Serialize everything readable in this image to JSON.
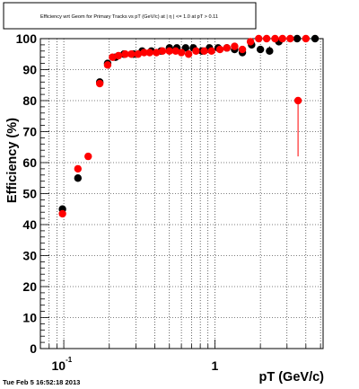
{
  "chart_data": {
    "type": "scatter",
    "title": "Efficiency wrt Geom for Primary Tracks vs pT (GeV/c) at |  η | <= 1.0 at pT > 0.11",
    "xlabel": "pT (GeV/c)",
    "ylabel": "Efficiency (%)",
    "x_scale": "log",
    "xlim": [
      0.07,
      5.2
    ],
    "ylim": [
      0,
      100
    ],
    "grid": true,
    "x_ticks": [
      {
        "value": 0.1,
        "base": "10",
        "exp": "-1"
      },
      {
        "value": 1,
        "base": "1",
        "exp": ""
      }
    ],
    "y_ticks": [
      "0",
      "10",
      "20",
      "30",
      "40",
      "50",
      "60",
      "70",
      "80",
      "90",
      "100"
    ],
    "series": [
      {
        "color": "#000000",
        "points": [
          [
            0.098,
            45.0,
            1.0,
            0.0,
            0.0075
          ],
          [
            0.124,
            55.0,
            1.0,
            0.0,
            0.0075
          ],
          [
            0.173,
            86.0,
            1.0,
            0.0,
            0.0075
          ],
          [
            0.195,
            92.0,
            1.0,
            0.0,
            0.0075
          ],
          [
            0.22,
            94.0,
            0.6,
            0.0,
            0.0075
          ],
          [
            0.25,
            95.0,
            0.6,
            0.0,
            0.0075
          ],
          [
            0.29,
            95.0,
            0.6,
            0.0,
            0.0075
          ],
          [
            0.33,
            96.0,
            0.6,
            0.0,
            0.0075
          ],
          [
            0.38,
            96.0,
            0.6,
            0.0,
            0.0075
          ],
          [
            0.44,
            96.0,
            0.6,
            0.0,
            0.0075
          ],
          [
            0.5,
            97.0,
            0.6,
            0.0,
            0.0075
          ],
          [
            0.56,
            97.0,
            0.6,
            0.0,
            0.0075
          ],
          [
            0.64,
            97.0,
            0.6,
            0.0,
            0.0075
          ],
          [
            0.72,
            97.0,
            0.6,
            0.0,
            0.0075
          ],
          [
            0.82,
            96.0,
            0.6,
            0.0,
            0.0075
          ],
          [
            0.92,
            97.0,
            0.6,
            0.0,
            0.0075
          ],
          [
            1.05,
            97.0,
            0.6,
            0.0,
            0.0075
          ],
          [
            1.2,
            97.0,
            0.6,
            0.0,
            0.0075
          ],
          [
            1.35,
            96.5,
            0.6,
            0.0,
            0.0075
          ],
          [
            1.52,
            95.5,
            0.8,
            0.0,
            0.0075
          ],
          [
            1.75,
            98.0,
            1.0,
            0.0,
            0.0075
          ],
          [
            2.0,
            96.5,
            1.0,
            0.0,
            0.0075
          ],
          [
            2.3,
            96.0,
            1.5,
            0.0,
            0.0075
          ],
          [
            2.65,
            99.0,
            1.0,
            0.0,
            0.0075
          ],
          [
            3.5,
            100.0,
            0.0,
            0.0,
            0.0075
          ],
          [
            4.6,
            100.0,
            0.0,
            0.0,
            0.0075
          ]
        ]
      },
      {
        "color": "#ff0000",
        "points": [
          [
            0.098,
            43.5,
            1.0,
            0.0,
            0.0075
          ],
          [
            0.124,
            58.0,
            1.0,
            0.0,
            0.0075
          ],
          [
            0.145,
            62.0,
            0.8,
            0.0,
            0.0075
          ],
          [
            0.173,
            85.5,
            1.0,
            0.0,
            0.0075
          ],
          [
            0.195,
            91.5,
            1.0,
            0.0,
            0.0075
          ],
          [
            0.21,
            94.0,
            0.6,
            0.0,
            0.0075
          ],
          [
            0.23,
            94.5,
            0.6,
            0.0,
            0.0075
          ],
          [
            0.255,
            95.0,
            0.6,
            0.0,
            0.0075
          ],
          [
            0.28,
            95.0,
            0.6,
            0.0,
            0.0075
          ],
          [
            0.31,
            95.0,
            0.6,
            0.0,
            0.0075
          ],
          [
            0.34,
            95.5,
            0.6,
            0.0,
            0.0075
          ],
          [
            0.37,
            95.5,
            0.6,
            0.0,
            0.0075
          ],
          [
            0.41,
            95.5,
            0.6,
            0.0,
            0.0075
          ],
          [
            0.45,
            96.0,
            0.6,
            0.0,
            0.0075
          ],
          [
            0.5,
            96.0,
            0.6,
            0.0,
            0.0075
          ],
          [
            0.55,
            96.0,
            0.6,
            0.0,
            0.0075
          ],
          [
            0.6,
            95.5,
            0.6,
            0.0,
            0.0075
          ],
          [
            0.67,
            95.0,
            0.6,
            0.0,
            0.0075
          ],
          [
            0.75,
            96.0,
            0.6,
            0.0,
            0.0075
          ],
          [
            0.85,
            96.0,
            0.6,
            0.0,
            0.0075
          ],
          [
            0.95,
            96.0,
            0.6,
            0.0,
            0.0075
          ],
          [
            1.08,
            96.5,
            0.6,
            0.0,
            0.0075
          ],
          [
            1.2,
            97.0,
            0.6,
            0.0,
            0.0075
          ],
          [
            1.35,
            97.5,
            0.6,
            0.0,
            0.0075
          ],
          [
            1.52,
            96.5,
            0.8,
            0.0,
            0.0075
          ],
          [
            1.72,
            99.0,
            0.8,
            0.0,
            0.0075
          ],
          [
            1.95,
            100.0,
            0.5,
            0.0,
            0.0075
          ],
          [
            2.2,
            100.0,
            0.5,
            0.0,
            0.0075
          ],
          [
            2.5,
            100.0,
            0.0,
            0.0,
            0.0075
          ],
          [
            2.8,
            100.0,
            0.0,
            0.0,
            0.0075
          ],
          [
            3.15,
            100.0,
            0.0,
            0.0,
            0.0075
          ],
          [
            3.55,
            80.0,
            0.0,
            18.0,
            0.0075
          ],
          [
            4.0,
            100.0,
            0.0,
            0.0,
            0.0075
          ]
        ]
      }
    ]
  },
  "footer": {
    "timestamp": "Tue Feb  5 16:52:18 2013"
  }
}
